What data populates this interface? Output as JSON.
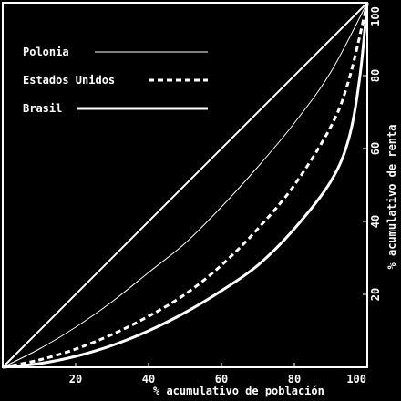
{
  "chart_data": {
    "type": "line",
    "xlabel": "% acumulativo de población",
    "ylabel": "% acumulativo de renta",
    "xlim": [
      0,
      100
    ],
    "ylim": [
      0,
      100
    ],
    "x_ticks": [
      20,
      40,
      60,
      80,
      100
    ],
    "y_ticks": [
      20,
      40,
      60,
      80,
      100
    ],
    "x_tick_labels": [
      "20",
      "40",
      "60",
      "80",
      "100"
    ],
    "y_tick_labels": [
      "20",
      "40",
      "60",
      "80",
      "100"
    ],
    "grid": false,
    "legend_position": "top-left",
    "background": "#000000",
    "foreground": "#ffffff",
    "equality_line": [
      [
        0,
        0
      ],
      [
        100,
        100
      ]
    ],
    "series": [
      {
        "name": "Polonia",
        "style": "thin-solid",
        "points": [
          [
            0,
            0
          ],
          [
            10,
            5
          ],
          [
            20,
            11
          ],
          [
            30,
            18
          ],
          [
            40,
            26
          ],
          [
            50,
            34
          ],
          [
            60,
            44
          ],
          [
            70,
            55
          ],
          [
            80,
            67
          ],
          [
            90,
            81
          ],
          [
            100,
            100
          ]
        ]
      },
      {
        "name": "Estados Unidos",
        "style": "dashed",
        "points": [
          [
            0,
            0
          ],
          [
            10,
            2
          ],
          [
            20,
            5
          ],
          [
            30,
            9
          ],
          [
            40,
            14
          ],
          [
            50,
            20
          ],
          [
            60,
            28
          ],
          [
            70,
            38
          ],
          [
            80,
            50
          ],
          [
            90,
            66
          ],
          [
            95,
            79
          ],
          [
            100,
            100
          ]
        ]
      },
      {
        "name": "Brasil",
        "style": "thick-solid",
        "points": [
          [
            0,
            0
          ],
          [
            10,
            1
          ],
          [
            20,
            3
          ],
          [
            30,
            6
          ],
          [
            40,
            10
          ],
          [
            50,
            15
          ],
          [
            60,
            21
          ],
          [
            70,
            28
          ],
          [
            80,
            38
          ],
          [
            90,
            51
          ],
          [
            95,
            63
          ],
          [
            98,
            80
          ],
          [
            100,
            100
          ]
        ]
      }
    ]
  }
}
